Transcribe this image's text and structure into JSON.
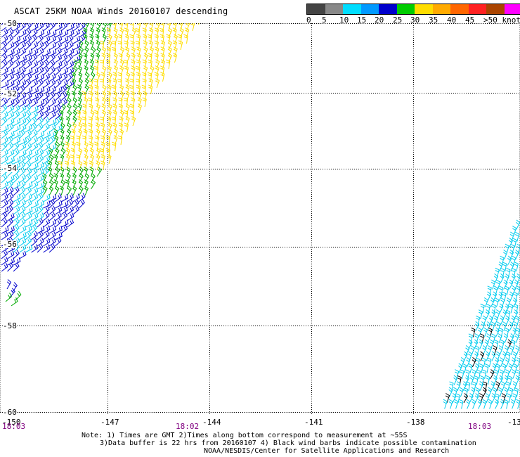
{
  "title": "ASCAT 25KM NOAA Winds 20160107 descending",
  "legend": {
    "labels": [
      "0",
      "5",
      "10",
      "15",
      "20",
      "25",
      "30",
      "35",
      "40",
      "45",
      ">50 knots"
    ],
    "colors": [
      "#444444",
      "#888888",
      "#00ddff",
      "#0099ff",
      "#0000cc",
      "#00cc00",
      "#ffdd00",
      "#ffaa00",
      "#ff6600",
      "#ff2222",
      "#aa4400",
      "#ff00ff",
      "#6600cc"
    ]
  },
  "axes": {
    "lon_labels": [
      "-150",
      "-147",
      "-144",
      "-141",
      "-138",
      "-13"
    ],
    "lat_labels": [
      "-50",
      "-52",
      "-54",
      "-56",
      "-58",
      "-60"
    ]
  },
  "times": [
    "18:03",
    "18:02",
    "18:03"
  ],
  "footer": {
    "line1": "Note: 1) Times are GMT 2)Times along bottom correspond to measurement at ~55S",
    "line2": "3)Data buffer is 22 hrs from 20160107 4) Black wind barbs indicate possible contamination",
    "line3": "NOAA/NESDIS/Center for Satellite Applications and Research"
  },
  "wind_colors": {
    "blue": "#0000cc",
    "cyan": "#00ccee",
    "green": "#00aa00",
    "yellow": "#ffdd00",
    "black": "#000000"
  }
}
